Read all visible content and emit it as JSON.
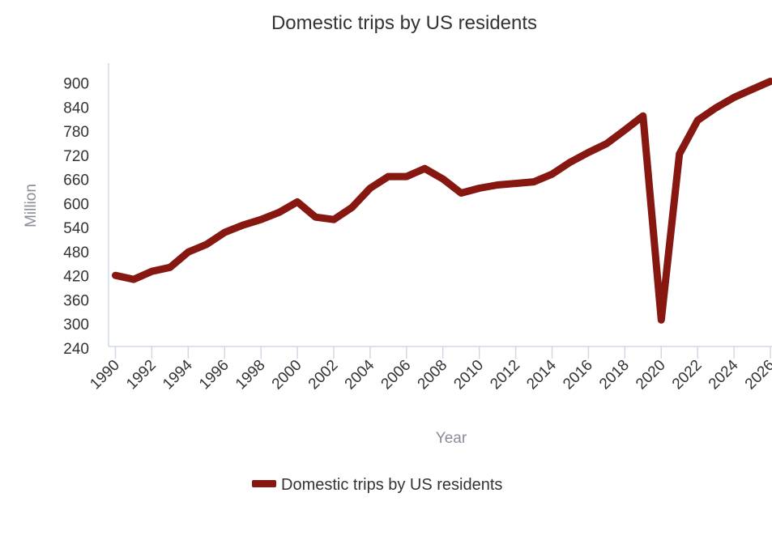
{
  "chart_data": {
    "type": "line",
    "title": "Domestic trips by US residents",
    "xlabel": "Year",
    "ylabel": "Million",
    "ylim": [
      240,
      900
    ],
    "xlim": [
      1990,
      2026
    ],
    "yticks": [
      240,
      300,
      360,
      420,
      480,
      540,
      600,
      660,
      720,
      780,
      840,
      900
    ],
    "xticks": [
      1990,
      1992,
      1994,
      1996,
      1998,
      2000,
      2002,
      2004,
      2006,
      2008,
      2010,
      2012,
      2014,
      2016,
      2018,
      2020,
      2022,
      2024,
      2026
    ],
    "grid": false,
    "legend_position": "bottom",
    "series": [
      {
        "name": "Domestic trips by US residents",
        "color": "#861811",
        "x": [
          1990,
          1991,
          1992,
          1993,
          1994,
          1995,
          1996,
          1997,
          1998,
          1999,
          2000,
          2001,
          2002,
          2003,
          2004,
          2005,
          2006,
          2007,
          2008,
          2009,
          2010,
          2011,
          2012,
          2013,
          2014,
          2015,
          2016,
          2017,
          2018,
          2019,
          2020,
          2021,
          2022,
          2023,
          2024,
          2025,
          2026
        ],
        "values": [
          421,
          411,
          431,
          441,
          479,
          498,
          528,
          546,
          560,
          578,
          604,
          566,
          560,
          590,
          638,
          667,
          667,
          687,
          661,
          626,
          638,
          646,
          650,
          654,
          673,
          703,
          727,
          749,
          783,
          818,
          310,
          723,
          807,
          838,
          864,
          884,
          904
        ]
      }
    ]
  }
}
